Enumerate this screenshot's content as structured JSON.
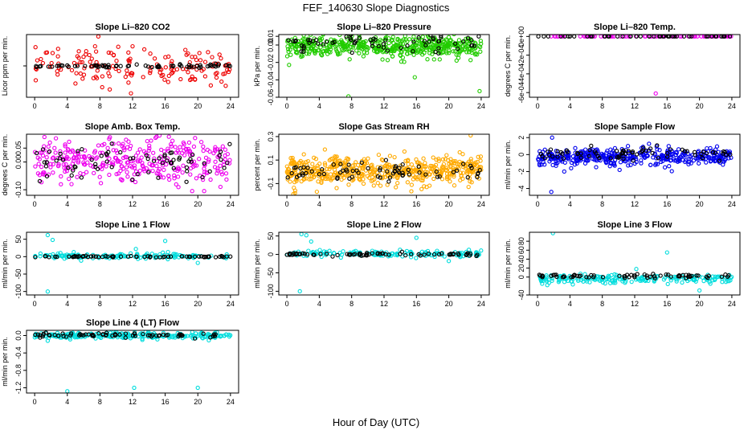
{
  "figure": {
    "title": "FEF_140630  Slope Diagnostics",
    "xlabel": "Hour of Day (UTC)"
  },
  "chart_data": [
    {
      "type": "scatter",
      "title": "Slope Li–820 CO2",
      "ylabel": "Licor ppm per min.",
      "xlim": [
        -1,
        25
      ],
      "ylim": [
        -16,
        16
      ],
      "xticks": [
        "0",
        "4",
        "8",
        "12",
        "16",
        "20",
        "24"
      ],
      "yticks": [],
      "series": [
        {
          "color": "#ee0000",
          "noise": 4.5,
          "center": 0,
          "n": 150,
          "outliers": [
            [
              7.8,
              15
            ],
            [
              7.4,
              10
            ],
            [
              11.8,
              -14
            ],
            [
              5,
              -9
            ],
            [
              12,
              10
            ],
            [
              9.2,
              -12
            ]
          ]
        },
        {
          "color": "#000000",
          "noise": 0.4,
          "center": 0,
          "n": 70,
          "outliers": []
        }
      ],
      "grid": false
    },
    {
      "type": "scatter",
      "title": "Slope Li–820 Pressure",
      "ylabel": "kPa per min.",
      "xlim": [
        -1,
        25
      ],
      "ylim": [
        -0.06,
        0.012
      ],
      "xticks": [
        "0",
        "4",
        "8",
        "12",
        "16",
        "20",
        "24"
      ],
      "yticks": [
        "-0.06",
        "-0.04",
        "-0.02",
        "0.00",
        "0.01"
      ],
      "ytick_vals": [
        -0.06,
        -0.04,
        -0.02,
        0.0,
        0.01
      ],
      "series": [
        {
          "color": "#22cc00",
          "noise": 0.006,
          "center": -0.002,
          "n": 500,
          "outliers": [
            [
              7.6,
              -0.059
            ],
            [
              23.8,
              -0.053
            ],
            [
              15.8,
              -0.037
            ],
            [
              20,
              0.009
            ]
          ]
        },
        {
          "color": "#000000",
          "noise": 0.006,
          "center": 0.003,
          "n": 70,
          "outliers": []
        }
      ],
      "grid": false
    },
    {
      "type": "scatter",
      "title": "Slope Li–820 Temp.",
      "ylabel": "degrees C per min.",
      "xlim": [
        -1,
        25
      ],
      "ylim": [
        -0.00065,
        2e-05
      ],
      "xticks": [
        "0",
        "4",
        "8",
        "12",
        "16",
        "20",
        "24"
      ],
      "yticks": [
        "-6e-04",
        "-4e-04",
        "-2e-04",
        "0e+00"
      ],
      "ytick_vals": [
        -0.0006,
        -0.0004,
        -0.0002,
        0
      ],
      "series": [
        {
          "color": "#ee00ee",
          "noise": 0,
          "center": 0,
          "n": 80,
          "outliers": [
            [
              14.6,
              -0.00061
            ]
          ]
        },
        {
          "color": "#000000",
          "noise": 0,
          "center": 0,
          "n": 50,
          "outliers": []
        }
      ],
      "grid": false
    },
    {
      "type": "scatter",
      "title": "Slope Amb. Box Temp.",
      "ylabel": "degrees C per min.",
      "xlim": [
        -1,
        25
      ],
      "ylim": [
        -0.12,
        0.1
      ],
      "xticks": [
        "0",
        "4",
        "8",
        "12",
        "16",
        "20",
        "24"
      ],
      "yticks": [
        "-0.10",
        "0.00",
        "0.05"
      ],
      "ytick_vals": [
        -0.1,
        0.0,
        0.05
      ],
      "series": [
        {
          "color": "#ee00ee",
          "noise": 0.04,
          "center": 0.0,
          "n": 330,
          "outliers": [
            [
              1.2,
              0.09
            ],
            [
              11.2,
              0.08
            ]
          ]
        },
        {
          "color": "#000000",
          "noise": 0.03,
          "center": 0.0,
          "n": 70,
          "outliers": []
        }
      ],
      "grid": false
    },
    {
      "type": "scatter",
      "title": "Slope Gas Stream RH",
      "ylabel": "percent per min.",
      "xlim": [
        -1,
        25
      ],
      "ylim": [
        -0.2,
        0.32
      ],
      "xticks": [
        "0",
        "4",
        "8",
        "12",
        "16",
        "20",
        "24"
      ],
      "yticks": [
        "-0.1",
        "0.1",
        "0.3"
      ],
      "ytick_vals": [
        -0.1,
        0.1,
        0.3
      ],
      "series": [
        {
          "color": "#ffaa00",
          "noise": 0.06,
          "center": 0.01,
          "n": 500,
          "outliers": [
            [
              22.7,
              0.31
            ],
            [
              1,
              -0.18
            ],
            [
              3.7,
              -0.17
            ],
            [
              4.7,
              0.19
            ]
          ]
        },
        {
          "color": "#000000",
          "noise": 0.04,
          "center": 0.0,
          "n": 70,
          "outliers": []
        }
      ],
      "grid": false
    },
    {
      "type": "scatter",
      "title": "Slope Sample Flow",
      "ylabel": "ml/min per min.",
      "xlim": [
        -1,
        25
      ],
      "ylim": [
        -4.8,
        2.4
      ],
      "xticks": [
        "0",
        "4",
        "8",
        "12",
        "16",
        "20",
        "24"
      ],
      "yticks": [
        "-4",
        "-2",
        "0",
        "2"
      ],
      "ytick_vals": [
        -4,
        -2,
        0,
        2
      ],
      "series": [
        {
          "color": "#0000ee",
          "noise": 0.5,
          "center": -0.3,
          "n": 420,
          "outliers": [
            [
              1.7,
              -4.4
            ],
            [
              1.8,
              2.0
            ],
            [
              16.2,
              1.0
            ],
            [
              3.3,
              -2.0
            ]
          ]
        },
        {
          "color": "#000000",
          "noise": 0.35,
          "center": 0.2,
          "n": 70,
          "outliers": []
        }
      ],
      "grid": false
    },
    {
      "type": "scatter",
      "title": "Slope Line 1 Flow",
      "ylabel": "ml/min per min.",
      "xlim": [
        -1,
        25
      ],
      "ylim": [
        -110,
        70
      ],
      "xticks": [
        "0",
        "4",
        "8",
        "12",
        "16",
        "20",
        "24"
      ],
      "yticks": [
        "-100",
        "-50",
        "0",
        "50"
      ],
      "ytick_vals": [
        -100,
        -50,
        0,
        50
      ],
      "series": [
        {
          "color": "#00dddd",
          "noise": 4,
          "center": 2,
          "n": 150,
          "outliers": [
            [
              1.6,
              -100
            ],
            [
              1.6,
              62
            ],
            [
              2.2,
              48
            ],
            [
              16,
              45
            ],
            [
              20,
              -18
            ],
            [
              12.4,
              22
            ]
          ]
        },
        {
          "color": "#000000",
          "noise": 1.2,
          "center": 0,
          "n": 70,
          "outliers": []
        }
      ],
      "grid": false
    },
    {
      "type": "scatter",
      "title": "Slope Line 2 Flow",
      "ylabel": "ml/min per min.",
      "xlim": [
        -1,
        25
      ],
      "ylim": [
        -110,
        60
      ],
      "xticks": [
        "0",
        "4",
        "8",
        "12",
        "16",
        "20",
        "24"
      ],
      "yticks": [
        "-100",
        "-50",
        "0",
        "50"
      ],
      "ytick_vals": [
        -100,
        -50,
        0,
        50
      ],
      "series": [
        {
          "color": "#00dddd",
          "noise": 4,
          "center": 2,
          "n": 150,
          "outliers": [
            [
              1.6,
              -100
            ],
            [
              1.8,
              55
            ],
            [
              2.4,
              52
            ],
            [
              16,
              45
            ],
            [
              20,
              -18
            ],
            [
              3,
              35
            ]
          ]
        },
        {
          "color": "#000000",
          "noise": 2,
          "center": 0,
          "n": 70,
          "outliers": []
        }
      ],
      "grid": false
    },
    {
      "type": "scatter",
      "title": "Slope Line 3 Flow",
      "ylabel": "ml/min per min.",
      "xlim": [
        -1,
        25
      ],
      "ylim": [
        -40,
        100
      ],
      "xticks": [
        "0",
        "4",
        "8",
        "12",
        "16",
        "20",
        "24"
      ],
      "yticks": [
        "-40",
        "0",
        "20",
        "40",
        "60",
        "80"
      ],
      "ytick_vals": [
        -40,
        0,
        20,
        40,
        60,
        80
      ],
      "series": [
        {
          "color": "#00dddd",
          "noise": 5,
          "center": -4,
          "n": 200,
          "outliers": [
            [
              1.9,
              98
            ],
            [
              16,
              55
            ],
            [
              20,
              -30
            ],
            [
              1.2,
              -18
            ],
            [
              12.2,
              18
            ]
          ]
        },
        {
          "color": "#000000",
          "noise": 2,
          "center": 2,
          "n": 70,
          "outliers": []
        }
      ],
      "grid": false
    },
    {
      "type": "scatter",
      "title": "Slope Line 4 (LT) Flow",
      "ylabel": "ml/min per min.",
      "xlim": [
        -1,
        25
      ],
      "ylim": [
        -1.32,
        0.12
      ],
      "xticks": [
        "0",
        "4",
        "8",
        "12",
        "16",
        "20",
        "24"
      ],
      "yticks": [
        "-1.2",
        "-0.8",
        "-0.4",
        "0.0"
      ],
      "ytick_vals": [
        -1.2,
        -0.8,
        -0.4,
        0.0
      ],
      "series": [
        {
          "color": "#00dddd",
          "noise": 0.035,
          "center": 0.0,
          "n": 260,
          "outliers": [
            [
              4,
              -1.28
            ],
            [
              12.2,
              -1.2
            ],
            [
              20,
              -1.2
            ],
            [
              1.6,
              -0.12
            ],
            [
              13.2,
              -0.1
            ]
          ]
        },
        {
          "color": "#000000",
          "noise": 0.025,
          "center": 0.01,
          "n": 70,
          "outliers": []
        }
      ],
      "grid": false
    }
  ]
}
